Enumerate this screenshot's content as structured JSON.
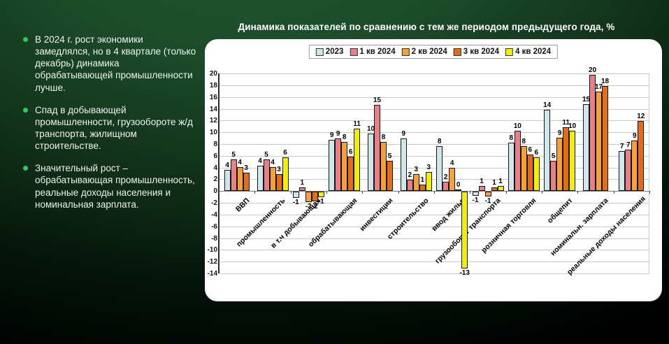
{
  "slide": {
    "title": "Динамика показателей по сравнению с тем же периодом предыдущего года, %",
    "bullet_color": "#2fc75f",
    "background_green": "#1b4a29",
    "background_black": "#000000",
    "bullets": [
      "В 2024 г. рост экономики замедлялся, но в 4 квартале (только декабрь) динамика обрабатывающей промышленности лучше.",
      "Спад в добывающей промышленности, грузообороте ж/д транспорта, жилищном строительстве.",
      "Значительный рост – обрабатывающая промышленность, реальные доходы населения и номинальная зарплата."
    ]
  },
  "chart_data": {
    "type": "bar",
    "title": "Динамика показателей по сравнению с тем же периодом предыдущего года, %",
    "legend_position": "top",
    "grid": true,
    "ylim": [
      -14,
      20
    ],
    "ytick_step": 2,
    "categories": [
      "ВВП",
      "промышленность",
      "в т.ч добывающая",
      "обрабатывающая",
      "инвестиции",
      "строительство",
      "ввод жилья",
      "грузооборот транспорта",
      "розничная торговля",
      "общепит",
      "номинальн. зарплата",
      "реальные доходы населения"
    ],
    "series": [
      {
        "name": "2023",
        "color": "#cfe7ea",
        "values": [
          4,
          4,
          -1,
          9,
          10,
          9,
          8,
          -1,
          8,
          14,
          15,
          7
        ],
        "est": [
          3.6,
          4.3,
          -1.0,
          8.7,
          9.8,
          9.0,
          7.7,
          -0.7,
          8.2,
          13.8,
          14.8,
          6.8
        ]
      },
      {
        "name": "1 кв 2024",
        "color": "#e8808a",
        "values": [
          5,
          5,
          1,
          9,
          15,
          2,
          2,
          1,
          10,
          5,
          20,
          7
        ],
        "est": [
          5.4,
          5.4,
          0.6,
          9.0,
          14.6,
          1.9,
          1.6,
          0.9,
          10.3,
          5.2,
          19.8,
          7.1
        ]
      },
      {
        "name": "2 кв 2024",
        "color": "#f2a237",
        "values": [
          4,
          4,
          -2,
          8,
          8,
          3,
          4,
          -1,
          8,
          9,
          17,
          9
        ],
        "est": [
          4.1,
          4.1,
          -1.8,
          8.3,
          8.3,
          2.9,
          3.9,
          -0.8,
          7.7,
          9.1,
          16.9,
          8.6
        ]
      },
      {
        "name": "3 кв 2024",
        "color": "#e66c15",
        "values": [
          3,
          3,
          -2,
          6,
          5,
          1,
          0,
          1,
          6,
          11,
          18,
          12
        ],
        "est": [
          3.1,
          2.9,
          -1.7,
          5.9,
          5.1,
          1.1,
          0.3,
          0.6,
          6.2,
          10.9,
          17.9,
          11.9
        ]
      },
      {
        "name": "4 кв 2024",
        "color": "#f2ef00",
        "values": [
          null,
          6,
          -1,
          11,
          null,
          3,
          -13,
          1,
          6,
          10,
          null,
          null
        ],
        "est": [
          null,
          5.7,
          -0.9,
          10.6,
          null,
          3.3,
          -13.0,
          0.9,
          5.7,
          10.2,
          null,
          null
        ]
      }
    ]
  }
}
